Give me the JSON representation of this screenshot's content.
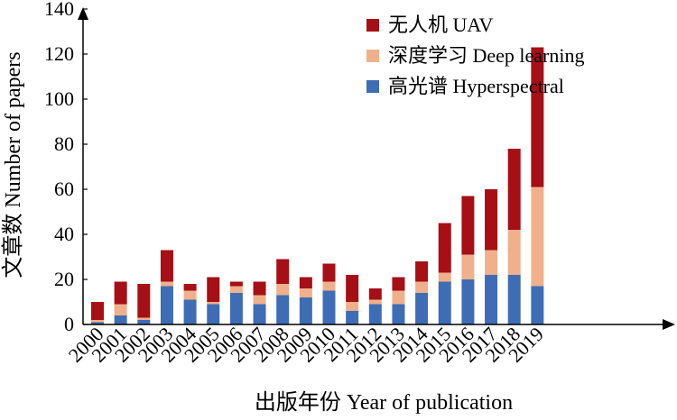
{
  "chart_data": {
    "type": "bar",
    "stacked": true,
    "xlabel": "出版年份 Year of publication",
    "ylabel": "文章数 Number of papers",
    "ylim": [
      0,
      140
    ],
    "yticks": [
      0,
      20,
      40,
      60,
      80,
      100,
      120,
      140
    ],
    "grid": false,
    "legend_position": "top-right",
    "categories": [
      "2000",
      "2001",
      "2002",
      "2003",
      "2004",
      "2005",
      "2006",
      "2007",
      "2008",
      "2009",
      "2010",
      "2011",
      "2012",
      "2013",
      "2014",
      "2015",
      "2016",
      "2017",
      "2018",
      "2019"
    ],
    "series": [
      {
        "name": "高光谱 Hyperspectral",
        "color": "#3f6db5",
        "values": [
          1,
          4,
          2,
          17,
          11,
          9,
          14,
          9,
          13,
          12,
          15,
          6,
          9,
          9,
          14,
          19,
          20,
          22,
          22,
          17
        ]
      },
      {
        "name": "深度学习 Deep learning",
        "color": "#f0b08c",
        "values": [
          1,
          5,
          1,
          2,
          4,
          1,
          3,
          4,
          5,
          4,
          4,
          4,
          2,
          6,
          5,
          4,
          11,
          11,
          20,
          44
        ]
      },
      {
        "name": "无人机 UAV",
        "color": "#a50f15",
        "values": [
          8,
          10,
          15,
          14,
          3,
          11,
          2,
          6,
          11,
          5,
          8,
          12,
          5,
          6,
          9,
          22,
          26,
          27,
          36,
          62
        ]
      }
    ],
    "legend_order": [
      "无人机 UAV",
      "深度学习 Deep learning",
      "高光谱 Hyperspectral"
    ]
  }
}
